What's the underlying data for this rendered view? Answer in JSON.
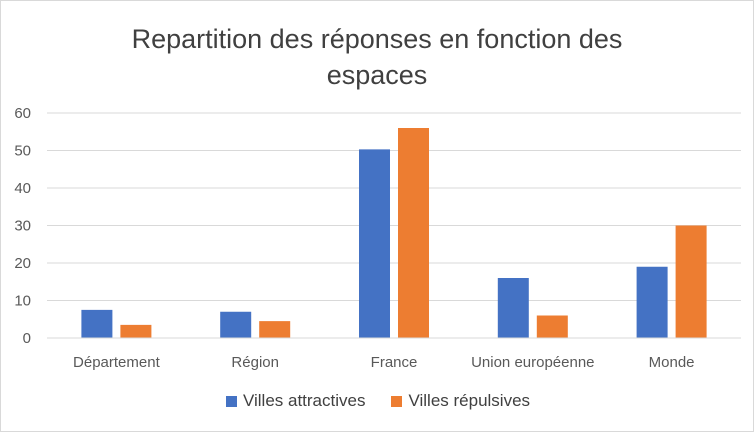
{
  "chart_data": {
    "type": "bar",
    "title": "Repartition des réponses en fonction des espaces",
    "xlabel": "",
    "ylabel": "",
    "categories": [
      "Département",
      "Région",
      "France",
      "Union européenne",
      "Monde"
    ],
    "series": [
      {
        "name": "Villes attractives",
        "color": "#4472c4",
        "values": [
          7.5,
          7,
          50.3,
          16,
          19
        ]
      },
      {
        "name": "Villes répulsives",
        "color": "#ed7d31",
        "values": [
          3.5,
          4.5,
          56,
          6,
          30
        ]
      }
    ],
    "ylim": [
      0,
      60
    ],
    "yticks": [
      0,
      10,
      20,
      30,
      40,
      50,
      60
    ],
    "grid": true,
    "legend_position": "bottom"
  }
}
